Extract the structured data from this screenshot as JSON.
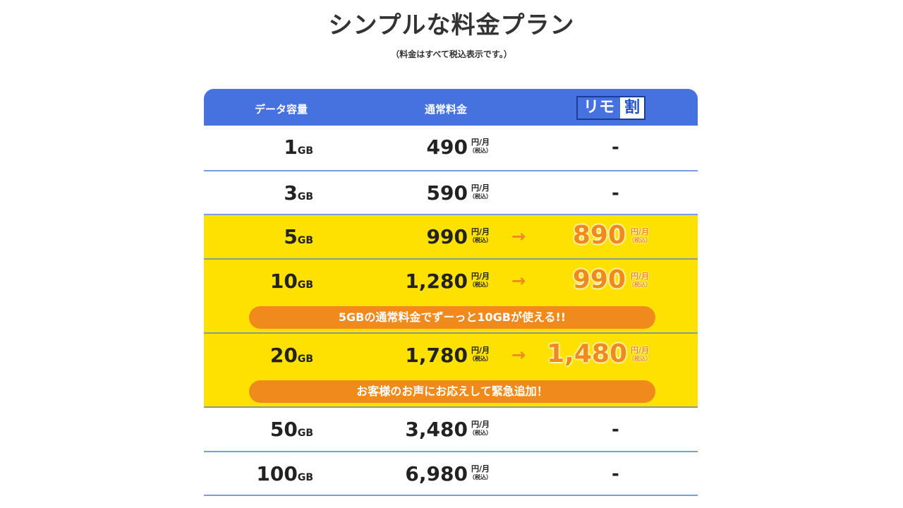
{
  "title": "シンプルな料金プラン",
  "subtitle": "（料金はすべて税込表示です。）",
  "header": {
    "col_data": "データ容量",
    "col_price": "通常料金",
    "remo_a": "リモ",
    "remo_b": "割"
  },
  "unit": "円/月",
  "tax": "（税込）",
  "gb_unit": "GB",
  "dash": "-",
  "arrow": "→",
  "colors": {
    "header": "#4672e0",
    "highlight": "#ffe100",
    "accent": "#f08a1c"
  },
  "rows": [
    {
      "gb": "1",
      "price": "490"
    },
    {
      "gb": "3",
      "price": "590"
    },
    {
      "gb": "5",
      "price": "990",
      "promo": "890"
    },
    {
      "gb": "10",
      "price": "1,280",
      "promo": "990",
      "banner": "5GBの通常料金でずーっと10GBが使える!!"
    },
    {
      "gb": "20",
      "price": "1,780",
      "promo": "1,480",
      "banner": "お客様のお声にお応えして緊急追加！"
    },
    {
      "gb": "50",
      "price": "3,480"
    },
    {
      "gb": "100",
      "price": "6,980"
    }
  ]
}
